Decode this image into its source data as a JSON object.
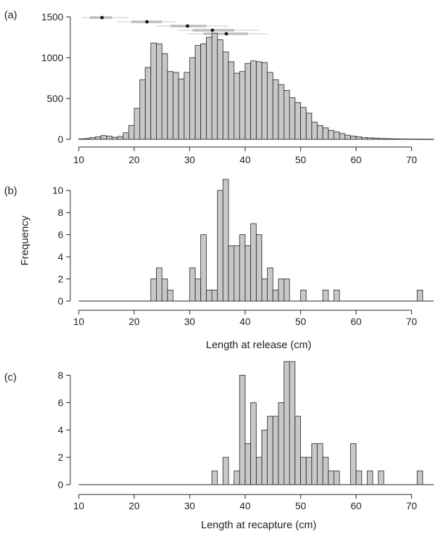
{
  "figure": {
    "panels": [
      {
        "label": "(a)",
        "ylabel": "",
        "xlabel": ""
      },
      {
        "label": "(b)",
        "ylabel": "Frequency",
        "xlabel": "Length at release (cm)"
      },
      {
        "label": "(c)",
        "ylabel": "",
        "xlabel": "Length at recapture (cm)"
      }
    ]
  },
  "chart_data": [
    {
      "type": "bar",
      "panel": "(a)",
      "xlim": [
        10,
        74
      ],
      "ylim": [
        0,
        1500
      ],
      "xticks": [
        10,
        20,
        30,
        40,
        50,
        60,
        70
      ],
      "yticks": [
        0,
        500,
        1000,
        1500
      ],
      "bin_width": 1,
      "bins": [
        10,
        11,
        12,
        13,
        14,
        15,
        16,
        17,
        18,
        19,
        20,
        21,
        22,
        23,
        24,
        25,
        26,
        27,
        28,
        29,
        30,
        31,
        32,
        33,
        34,
        35,
        36,
        37,
        38,
        39,
        40,
        41,
        42,
        43,
        44,
        45,
        46,
        47,
        48,
        49,
        50,
        51,
        52,
        53,
        54,
        55,
        56,
        57,
        58,
        59,
        60,
        61,
        62,
        63,
        64,
        65,
        66,
        67,
        68,
        69,
        70,
        71,
        72,
        73
      ],
      "values": [
        5,
        10,
        20,
        30,
        45,
        38,
        25,
        35,
        80,
        170,
        380,
        730,
        880,
        1180,
        1170,
        1050,
        830,
        820,
        740,
        820,
        1000,
        1150,
        1170,
        1250,
        1300,
        1220,
        1070,
        950,
        810,
        830,
        930,
        960,
        950,
        940,
        820,
        730,
        670,
        600,
        510,
        450,
        390,
        320,
        210,
        170,
        140,
        110,
        90,
        70,
        50,
        40,
        30,
        22,
        18,
        15,
        10,
        8,
        6,
        5,
        4,
        3,
        2,
        2,
        1,
        1
      ],
      "intervals": [
        {
          "point": 14.2,
          "inner": [
            12.0,
            16.0
          ],
          "outer": [
            10.5,
            19.0
          ]
        },
        {
          "point": 22.3,
          "inner": [
            19.5,
            25.0
          ],
          "outer": [
            17.0,
            27.5
          ]
        },
        {
          "point": 29.6,
          "inner": [
            26.5,
            33.0
          ],
          "outer": [
            24.0,
            37.0
          ]
        },
        {
          "point": 34.1,
          "inner": [
            30.5,
            38.0
          ],
          "outer": [
            28.0,
            42.5
          ]
        },
        {
          "point": 36.6,
          "inner": [
            32.5,
            40.5
          ],
          "outer": [
            29.5,
            44.0
          ]
        }
      ]
    },
    {
      "type": "bar",
      "panel": "(b)",
      "xlabel": "Length at release (cm)",
      "ylabel": "Frequency",
      "xlim": [
        10,
        74
      ],
      "ylim": [
        0,
        11
      ],
      "xticks": [
        10,
        20,
        30,
        40,
        50,
        60,
        70
      ],
      "yticks": [
        0,
        2,
        4,
        6,
        8,
        10
      ],
      "bin_width": 1,
      "bins": [
        23,
        24,
        25,
        26,
        30,
        31,
        32,
        33,
        34,
        35,
        36,
        37,
        38,
        39,
        40,
        41,
        42,
        43,
        44,
        45,
        46,
        47,
        50,
        54,
        56,
        71
      ],
      "values": [
        2,
        3,
        2,
        1,
        3,
        2,
        6,
        1,
        1,
        10,
        11,
        5,
        5,
        6,
        5,
        7,
        6,
        2,
        3,
        1,
        2,
        2,
        1,
        1,
        1,
        1
      ]
    },
    {
      "type": "bar",
      "panel": "(c)",
      "xlabel": "Length at recapture (cm)",
      "ylabel": "",
      "xlim": [
        10,
        74
      ],
      "ylim": [
        0,
        9
      ],
      "xticks": [
        10,
        20,
        30,
        40,
        50,
        60,
        70
      ],
      "yticks": [
        0,
        2,
        4,
        6,
        8
      ],
      "bin_width": 1,
      "bins": [
        34,
        36,
        38,
        39,
        40,
        41,
        42,
        43,
        44,
        45,
        46,
        47,
        48,
        49,
        50,
        51,
        52,
        53,
        54,
        55,
        56,
        59,
        60,
        62,
        64,
        71
      ],
      "values": [
        1,
        2,
        1,
        8,
        3,
        6,
        2,
        4,
        5,
        5,
        6,
        9,
        9,
        5,
        2,
        2,
        3,
        3,
        2,
        1,
        1,
        3,
        1,
        1,
        1,
        1
      ]
    }
  ]
}
